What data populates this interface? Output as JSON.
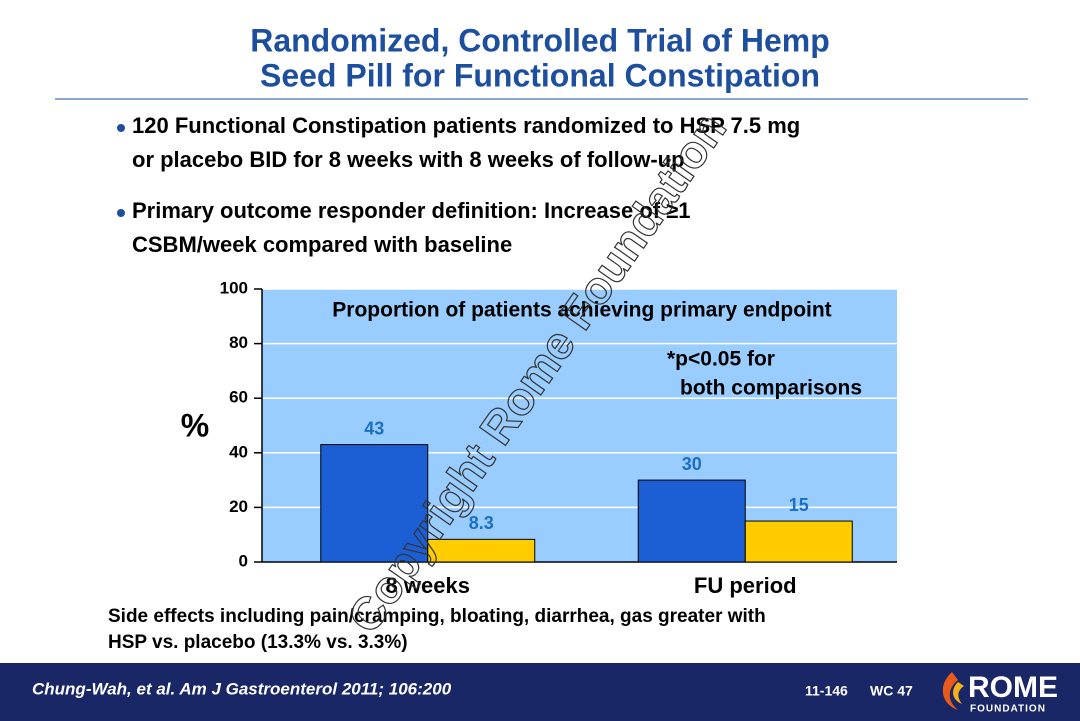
{
  "header": {
    "title": [
      "Randomized, Controlled Trial of Hemp",
      "Seed Pill for Functional Constipation"
    ]
  },
  "bullets": [
    [
      "120 Functional Constipation patients randomized to HSP 7.5 mg",
      "or placebo BID for 8 weeks with 8 weeks of follow-up"
    ],
    [
      "Primary outcome responder definition: Increase of  ≥1",
      "CSBM/week compared with baseline"
    ]
  ],
  "chart_data": {
    "type": "bar",
    "title": "Proportion of patients achieving primary endpoint",
    "annotation": [
      "*p<0.05 for",
      "both comparisons"
    ],
    "y_label": "%",
    "categories": [
      "8 weeks",
      "FU period"
    ],
    "series": [
      {
        "color": "#1c5fd4",
        "values": [
          43,
          30
        ]
      },
      {
        "color": "#ffcc00",
        "values": [
          8.3,
          15
        ]
      }
    ],
    "ylim": [
      0,
      100
    ],
    "yticks": [
      0,
      20,
      40,
      60,
      80,
      100
    ],
    "grid": true,
    "background": "#99ccff"
  },
  "footnote": [
    "Side effects including pain/cramping, bloating, diarrhea, gas greater with",
    "HSP vs. placebo      (13.3% vs. 3.3%)"
  ],
  "footer": {
    "citation": "Chung-Wah, et al. Am J Gastroenterol 2011; 106:200",
    "slide_id": "11-146",
    "code": "WC 47",
    "logo": "ROME",
    "logo_sub": "FOUNDATION"
  },
  "watermark": "Copyright Rome Foundation"
}
